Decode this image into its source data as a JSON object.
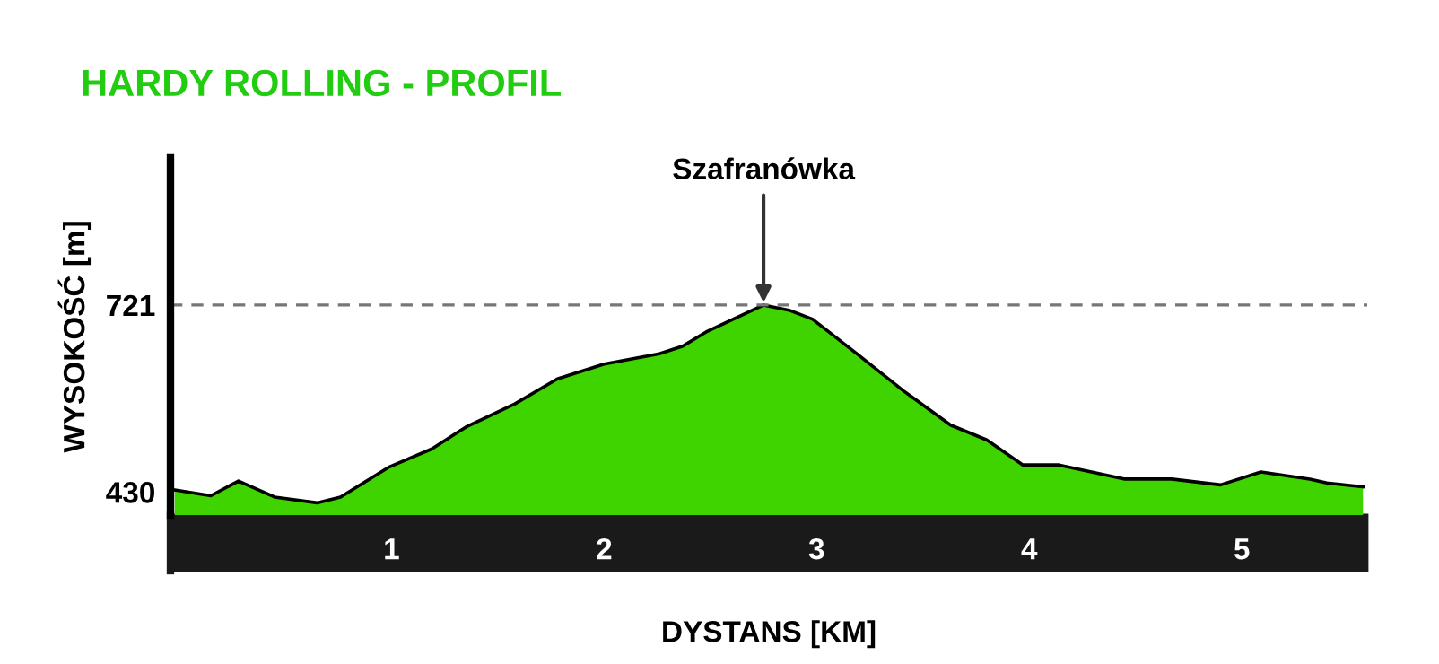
{
  "chart_data": {
    "type": "area",
    "title": "HARDY ROLLING - PROFIL",
    "xlabel": "DYSTANS [KM]",
    "ylabel": "WYSOKOŚĆ [m]",
    "x": [
      -0.02,
      0.15,
      0.28,
      0.45,
      0.65,
      0.76,
      0.99,
      1.19,
      1.35,
      1.58,
      1.78,
      2.0,
      2.26,
      2.37,
      2.48,
      2.73,
      2.75,
      2.87,
      2.98,
      3.19,
      3.41,
      3.63,
      3.8,
      3.97,
      4.14,
      4.45,
      4.67,
      4.9,
      5.09,
      5.32,
      5.4,
      5.57
    ],
    "series": [
      {
        "color": "#3fd400",
        "values": [
          433,
          424,
          447,
          422,
          413,
          422,
          469,
          497,
          531,
          567,
          606,
          629,
          645,
          657,
          679,
          718,
          721,
          713,
          699,
          645,
          587,
          534,
          511,
          472,
          472,
          450,
          450,
          441,
          461,
          450,
          444,
          438
        ]
      }
    ],
    "xlim": [
      -0.04,
      5.59
    ],
    "ylim": [
      394,
      950
    ],
    "xticks": [
      1,
      2,
      3,
      4,
      5
    ],
    "yticks": [
      430,
      721
    ],
    "ref_lines": [
      {
        "axis": "y",
        "value": 721,
        "line_style": "dashed",
        "color": "#777777"
      }
    ],
    "annotations": [
      {
        "text": "Szafranówka",
        "x": 2.75,
        "y": 721
      }
    ],
    "grid": false,
    "legend": false
  }
}
